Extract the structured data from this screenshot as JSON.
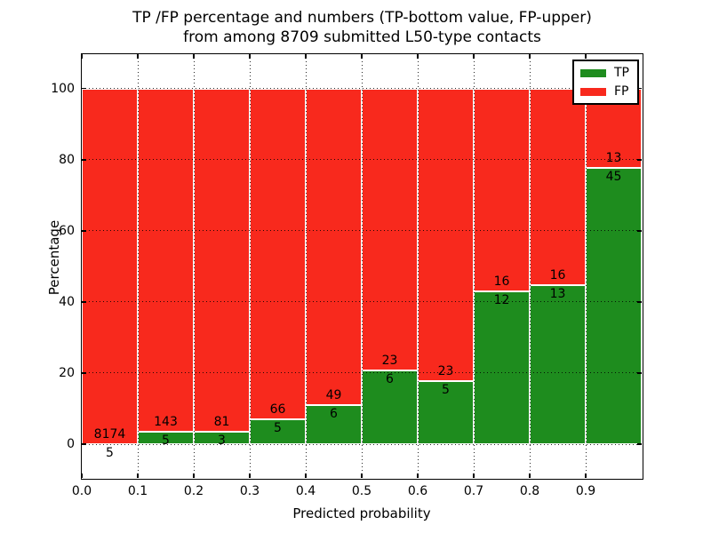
{
  "title": {
    "line1": "TP /FP percentage and numbers (TP-bottom value, FP-upper)",
    "line2": "from among 8709 submitted L50-type contacts"
  },
  "legend": {
    "position": "upper right",
    "items": [
      {
        "label": "TP",
        "color": "#1e8c1e"
      },
      {
        "label": "FP",
        "color": "#f8291d"
      }
    ]
  },
  "chart_data": {
    "type": "bar",
    "stacked": true,
    "normalized_to": 100,
    "title": "TP /FP percentage and numbers (TP-bottom value, FP-upper)\nfrom among 8709 submitted L50-type contacts",
    "xlabel": "Predicted probability",
    "ylabel": "Percentage",
    "x_tick_labels": [
      "0.0",
      "0.1",
      "0.2",
      "0.3",
      "0.4",
      "0.5",
      "0.6",
      "0.7",
      "0.8",
      "0.9"
    ],
    "y_ticks": [
      0,
      20,
      40,
      60,
      80,
      100
    ],
    "xlim": [
      0.0,
      1.0
    ],
    "ylim": [
      -9.5,
      109.6
    ],
    "bin_width": 0.1,
    "grid": "dotted",
    "legend_position": "upper right",
    "total_contacts": 8709,
    "series": [
      {
        "name": "TP",
        "color": "#1e8c1e",
        "counts": [
          5,
          5,
          3,
          5,
          6,
          6,
          5,
          12,
          13,
          45
        ]
      },
      {
        "name": "FP",
        "color": "#f8291d",
        "counts": [
          8174,
          143,
          81,
          66,
          49,
          23,
          23,
          16,
          16,
          13
        ]
      }
    ],
    "bins": [
      {
        "x_start": 0.0,
        "tp": 5,
        "fp": 8174
      },
      {
        "x_start": 0.1,
        "tp": 5,
        "fp": 143
      },
      {
        "x_start": 0.2,
        "tp": 3,
        "fp": 81
      },
      {
        "x_start": 0.3,
        "tp": 5,
        "fp": 66
      },
      {
        "x_start": 0.4,
        "tp": 6,
        "fp": 49
      },
      {
        "x_start": 0.5,
        "tp": 6,
        "fp": 23
      },
      {
        "x_start": 0.6,
        "tp": 5,
        "fp": 23
      },
      {
        "x_start": 0.7,
        "tp": 12,
        "fp": 16
      },
      {
        "x_start": 0.8,
        "tp": 13,
        "fp": 16
      },
      {
        "x_start": 0.9,
        "tp": 45,
        "fp": 13
      }
    ],
    "colors": {
      "tp": "#1e8c1e",
      "fp": "#f8291d",
      "bar_edge": "#ffffff",
      "grid": "#000000",
      "text": "#000000"
    }
  }
}
